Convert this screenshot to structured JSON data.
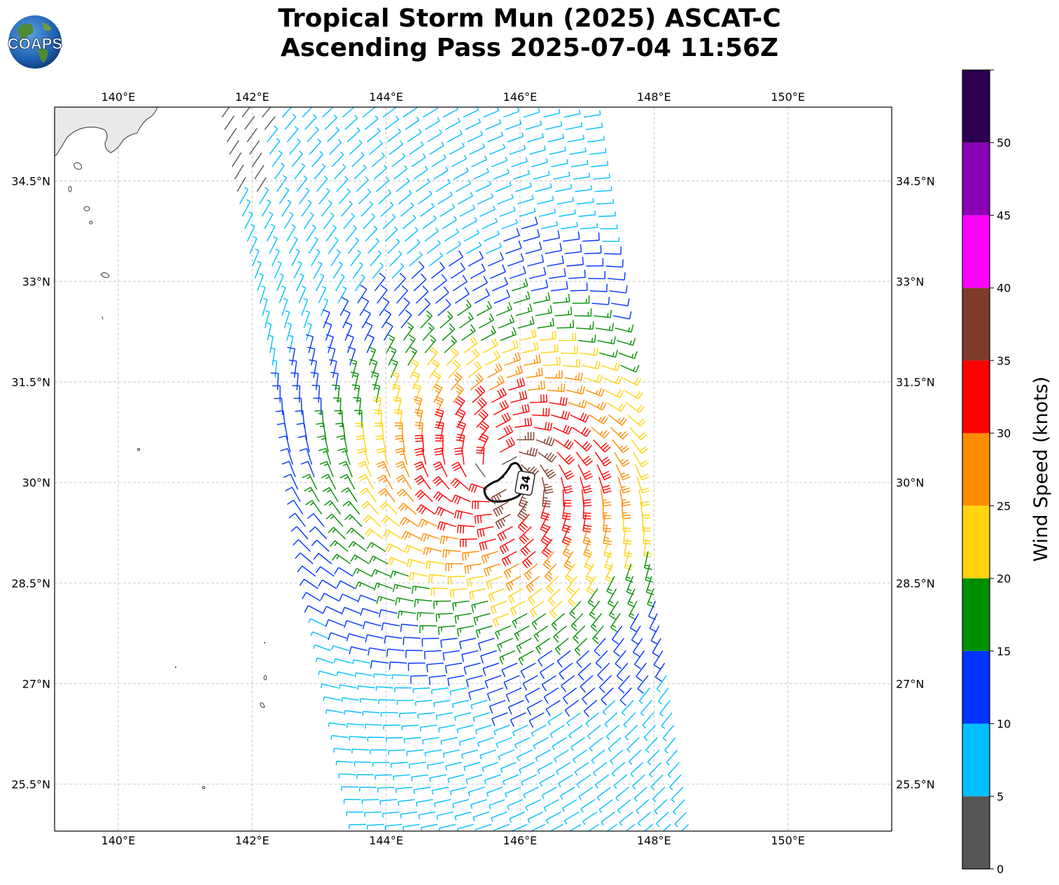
{
  "header": {
    "title_line1": "Tropical Storm Mun (2025) ASCAT-C",
    "title_line2": "Ascending Pass 2025-07-04 11:56Z",
    "logo_text": "COAPS"
  },
  "map": {
    "lon_range": [
      139.05,
      151.55
    ],
    "lat_range": [
      24.8,
      35.6
    ],
    "lon_ticks": [
      "140°E",
      "142°E",
      "144°E",
      "146°E",
      "148°E",
      "150°E"
    ],
    "lon_tick_values": [
      140,
      142,
      144,
      146,
      148,
      150
    ],
    "lat_ticks": [
      "34.5°N",
      "33°N",
      "31.5°N",
      "30°N",
      "28.5°N",
      "27°N",
      "25.5°N"
    ],
    "lat_tick_values": [
      34.5,
      33,
      31.5,
      30,
      28.5,
      27,
      25.5
    ],
    "grid": true,
    "storm_center": [
      145.75,
      30.15
    ],
    "wind_radius_label": "34",
    "wind_radius_knots": 34
  },
  "colorbar": {
    "title": "Wind Speed (knots)",
    "tick_labels": [
      "0",
      "5",
      "10",
      "15",
      "20",
      "25",
      "30",
      "35",
      "40",
      "45",
      "50"
    ],
    "bins": [
      {
        "min": 0,
        "max": 5,
        "color": "#555555"
      },
      {
        "min": 5,
        "max": 10,
        "color": "#00bfff"
      },
      {
        "min": 10,
        "max": 15,
        "color": "#0033ff"
      },
      {
        "min": 15,
        "max": 20,
        "color": "#008f00"
      },
      {
        "min": 20,
        "max": 25,
        "color": "#ffd30f"
      },
      {
        "min": 25,
        "max": 30,
        "color": "#ff8c00"
      },
      {
        "min": 30,
        "max": 35,
        "color": "#ff0000"
      },
      {
        "min": 35,
        "max": 40,
        "color": "#7f3a2a"
      },
      {
        "min": 40,
        "max": 45,
        "color": "#ff00ff"
      },
      {
        "min": 45,
        "max": 50,
        "color": "#8a00b4"
      },
      {
        "min": 50,
        "max": 55,
        "color": "#2d004f"
      }
    ]
  },
  "swath": {
    "corners": [
      [
        141.4,
        35.6
      ],
      [
        147.05,
        35.6
      ],
      [
        148.65,
        24.8
      ],
      [
        143.6,
        24.8
      ]
    ]
  }
}
